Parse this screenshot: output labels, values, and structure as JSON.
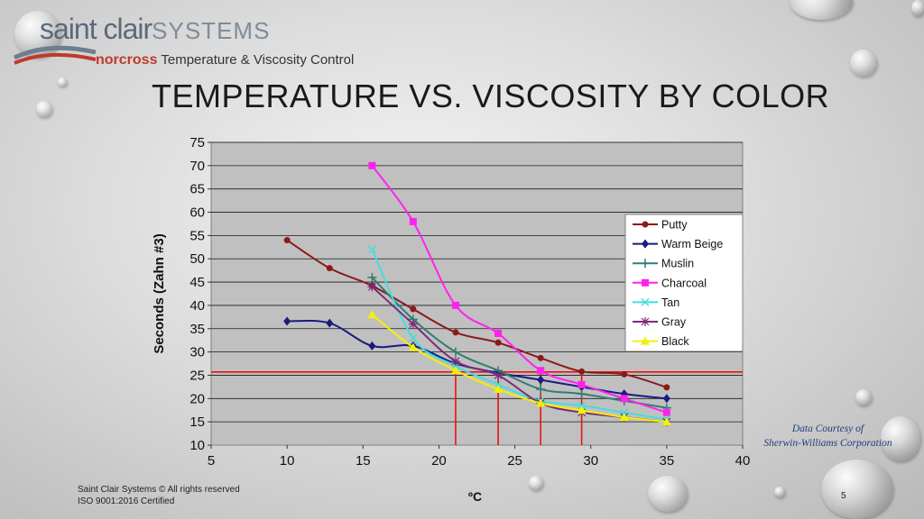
{
  "logo": {
    "brand": "saint clair",
    "brand_sys": "SYSTEMS",
    "sub_red": "norcross",
    "sub_text": " Temperature & Viscosity Control"
  },
  "slide": {
    "title": "TEMPERATURE VS. VISCOSITY BY COLOR",
    "page_number": "5"
  },
  "credit": {
    "line1": "Data Courtesy of",
    "line2": "Sherwin-Williams Corporation"
  },
  "footer": {
    "line1": "Saint Clair Systems © All rights reserved",
    "line2": "ISO 9001:2016 Certified"
  },
  "chart_data": {
    "type": "line",
    "title": "",
    "xlabel": "ºC",
    "ylabel": "Seconds (Zahn #3)",
    "xlim": [
      5,
      40
    ],
    "ylim": [
      10,
      75
    ],
    "x_ticks": [
      5,
      10,
      15,
      20,
      25,
      30,
      35,
      40
    ],
    "y_ticks": [
      10,
      15,
      20,
      25,
      30,
      35,
      40,
      45,
      50,
      55,
      60,
      65,
      70,
      75
    ],
    "grid": "horizontal",
    "legend_position": "right",
    "series": [
      {
        "name": "Putty",
        "color": "#8b1a1a",
        "marker": "circle",
        "x": [
          10,
          12.8,
          15.6,
          18.3,
          21.1,
          23.9,
          26.7,
          29.4,
          32.2,
          35
        ],
        "y": [
          54,
          48,
          44.2,
          39.2,
          34.2,
          32,
          28.7,
          25.8,
          25.2,
          22.4
        ]
      },
      {
        "name": "Warm Beige",
        "color": "#1a1a80",
        "marker": "diamond",
        "x": [
          10,
          12.8,
          15.6,
          18.3,
          21.1,
          23.9,
          26.7,
          29.4,
          32.2,
          35
        ],
        "y": [
          36.6,
          36.2,
          31.3,
          31.3,
          27.5,
          25.5,
          24,
          22.5,
          21,
          20
        ]
      },
      {
        "name": "Muslin",
        "color": "#2e7f73",
        "marker": "cross",
        "x": [
          15.6,
          18.3,
          21.1,
          23.9,
          26.7,
          29.4,
          32.2,
          35
        ],
        "y": [
          46,
          37,
          30,
          26,
          22,
          21,
          19.5,
          18
        ]
      },
      {
        "name": "Charcoal",
        "color": "#ff22ee",
        "marker": "square",
        "x": [
          15.6,
          18.3,
          21.1,
          23.9,
          26.7,
          29.4,
          32.2,
          35
        ],
        "y": [
          70,
          58,
          40,
          34,
          26,
          23,
          20,
          17
        ]
      },
      {
        "name": "Tan",
        "color": "#44dddd",
        "marker": "x",
        "x": [
          15.6,
          18.3,
          21.1,
          23.9,
          26.7,
          29.4,
          32.2,
          35
        ],
        "y": [
          52,
          33,
          27,
          23,
          19.5,
          18.5,
          17,
          15.5
        ]
      },
      {
        "name": "Gray",
        "color": "#7a2a7a",
        "marker": "star",
        "x": [
          15.6,
          18.3,
          21.1,
          23.9,
          26.7,
          29.4,
          32.2,
          35
        ],
        "y": [
          44,
          36,
          28,
          25,
          19,
          17,
          16,
          15
        ]
      },
      {
        "name": "Black",
        "color": "#f2f200",
        "marker": "triangle",
        "x": [
          15.6,
          18.3,
          21.1,
          23.9,
          26.7,
          29.4,
          32.2,
          35
        ],
        "y": [
          38,
          31,
          26,
          22,
          19,
          17.5,
          16,
          15
        ]
      }
    ],
    "reference_lines": {
      "color": "#ee1111",
      "horizontal_y": 25.7,
      "vertical_x": [
        21.1,
        23.9,
        26.7,
        29.4
      ]
    }
  }
}
